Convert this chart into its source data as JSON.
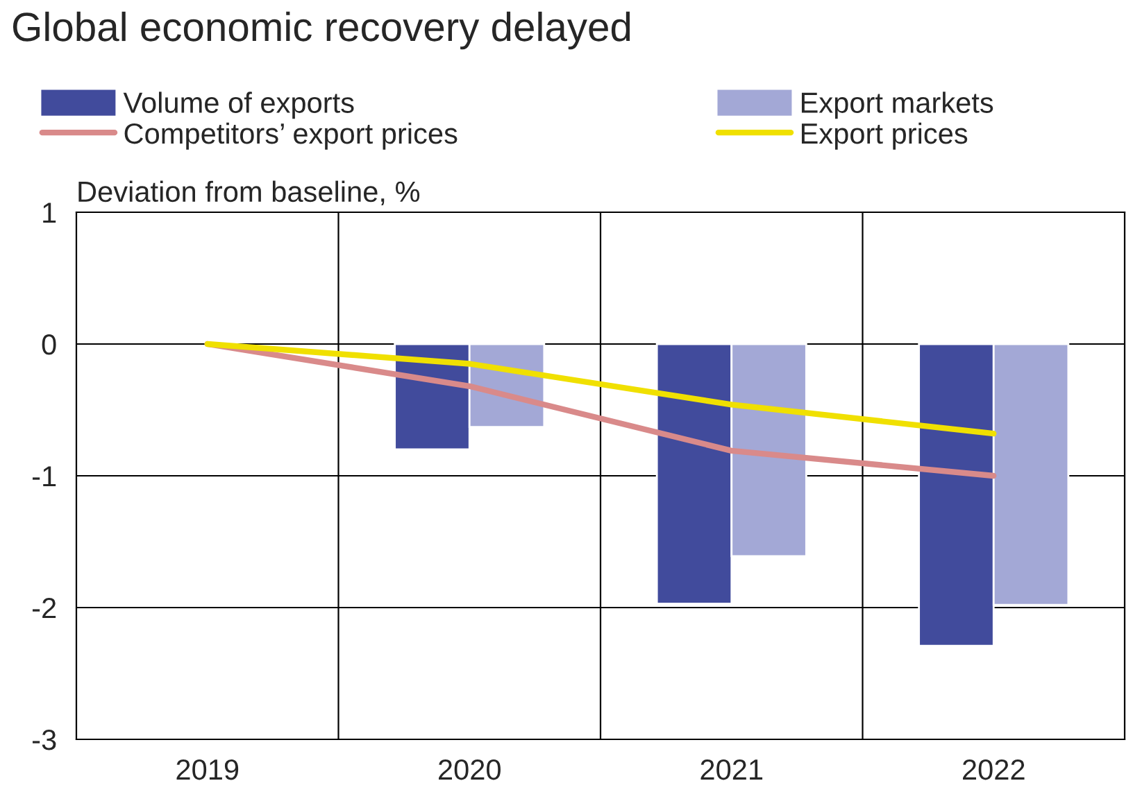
{
  "chart_data": {
    "type": "bar",
    "title": "Global economic recovery delayed",
    "ylabel": "Deviation from baseline, %",
    "categories": [
      "2019",
      "2020",
      "2021",
      "2022"
    ],
    "series": [
      {
        "name": "Volume of exports",
        "color": "#414b9c",
        "values": [
          null,
          -0.8,
          -1.97,
          -2.29
        ]
      },
      {
        "name": "Export markets",
        "color": "#a3a8d6",
        "values": [
          null,
          -0.63,
          -1.61,
          -1.98
        ]
      },
      {
        "name": "Competitors’ export prices",
        "type": "line",
        "color": "#d98a8a",
        "values": [
          0,
          -0.32,
          -0.81,
          -1.0
        ]
      },
      {
        "name": "Export prices",
        "type": "line",
        "color": "#f0e000",
        "values": [
          0,
          -0.15,
          -0.46,
          -0.68
        ]
      }
    ],
    "ylim": [
      -3,
      1
    ],
    "yticks": [
      -3,
      -2,
      -1,
      0,
      1
    ],
    "grid": true,
    "legend": "top",
    "line_style": "solid",
    "marker": "none"
  }
}
